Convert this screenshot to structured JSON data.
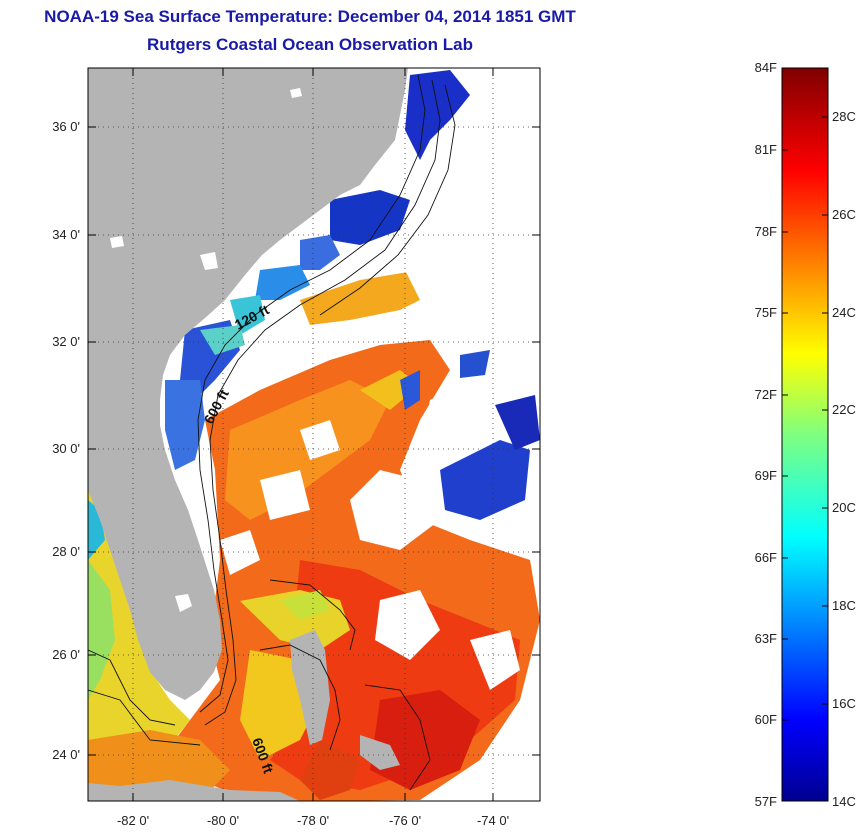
{
  "header": {
    "title_line1": "NOAA-19 Sea Surface Temperature:  December 04, 2014 1851 GMT",
    "title_line2": "Rutgers Coastal Ocean Observation Lab"
  },
  "map": {
    "latitude_labels": [
      "36 0'",
      "34 0'",
      "32 0'",
      "30 0'",
      "28 0'",
      "26 0'",
      "24 0'"
    ],
    "longitude_labels": [
      "-82 0'",
      "-80 0'",
      "-78 0'",
      "-76 0'",
      "-74 0'"
    ],
    "contour_labels": [
      "120 ft",
      "600 ft",
      "600 ft"
    ],
    "colors": {
      "land": "#b4b4b4",
      "cloud": "#ffffff",
      "cold": "#1030c0",
      "warm": "#f04010"
    }
  },
  "colorbar": {
    "fahrenheit_labels": [
      "84F",
      "81F",
      "78F",
      "75F",
      "72F",
      "69F",
      "66F",
      "63F",
      "60F",
      "57F"
    ],
    "celsius_labels": [
      "28C",
      "26C",
      "24C",
      "22C",
      "20C",
      "18C",
      "16C",
      "14C"
    ],
    "range_f": [
      57,
      84
    ],
    "range_c": [
      14,
      29
    ]
  }
}
